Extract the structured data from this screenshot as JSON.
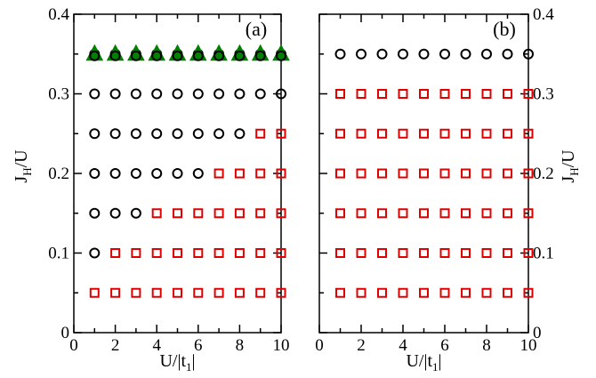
{
  "chart_data": [
    {
      "type": "scatter",
      "panel_label": "(a)",
      "xlabel": {
        "main": "U/|t",
        "sub": "1",
        "end": "|"
      },
      "ylabel": {
        "main": "J",
        "sub": "H",
        "end": "/U"
      },
      "y_axis_side": "left",
      "xlim": [
        0,
        10
      ],
      "ylim": [
        0,
        0.4
      ],
      "xticks": [
        "0",
        "2",
        "4",
        "6",
        "8",
        "10"
      ],
      "yticks": [
        "0",
        "0.1",
        "0.2",
        "0.3",
        "0.4"
      ],
      "grid": false,
      "series": [
        {
          "marker": "circle",
          "color": "#000000",
          "points": [
            [
              1,
              0.1
            ],
            [
              1,
              0.15
            ],
            [
              2,
              0.15
            ],
            [
              3,
              0.15
            ],
            [
              1,
              0.2
            ],
            [
              2,
              0.2
            ],
            [
              3,
              0.2
            ],
            [
              4,
              0.2
            ],
            [
              5,
              0.2
            ],
            [
              6,
              0.2
            ],
            [
              1,
              0.25
            ],
            [
              2,
              0.25
            ],
            [
              3,
              0.25
            ],
            [
              4,
              0.25
            ],
            [
              5,
              0.25
            ],
            [
              6,
              0.25
            ],
            [
              7,
              0.25
            ],
            [
              8,
              0.25
            ],
            [
              1,
              0.3
            ],
            [
              2,
              0.3
            ],
            [
              3,
              0.3
            ],
            [
              4,
              0.3
            ],
            [
              5,
              0.3
            ],
            [
              6,
              0.3
            ],
            [
              7,
              0.3
            ],
            [
              8,
              0.3
            ],
            [
              9,
              0.3
            ],
            [
              10,
              0.3
            ],
            [
              1,
              0.35
            ],
            [
              2,
              0.35
            ],
            [
              3,
              0.35
            ],
            [
              4,
              0.35
            ],
            [
              5,
              0.35
            ],
            [
              6,
              0.35
            ],
            [
              7,
              0.35
            ],
            [
              8,
              0.35
            ],
            [
              9,
              0.35
            ],
            [
              10,
              0.35
            ]
          ]
        },
        {
          "marker": "square",
          "color": "#e00000",
          "points": [
            [
              1,
              0.05
            ],
            [
              2,
              0.05
            ],
            [
              3,
              0.05
            ],
            [
              4,
              0.05
            ],
            [
              5,
              0.05
            ],
            [
              6,
              0.05
            ],
            [
              7,
              0.05
            ],
            [
              8,
              0.05
            ],
            [
              9,
              0.05
            ],
            [
              10,
              0.05
            ],
            [
              2,
              0.1
            ],
            [
              3,
              0.1
            ],
            [
              4,
              0.1
            ],
            [
              5,
              0.1
            ],
            [
              6,
              0.1
            ],
            [
              7,
              0.1
            ],
            [
              8,
              0.1
            ],
            [
              9,
              0.1
            ],
            [
              10,
              0.1
            ],
            [
              4,
              0.15
            ],
            [
              5,
              0.15
            ],
            [
              6,
              0.15
            ],
            [
              7,
              0.15
            ],
            [
              8,
              0.15
            ],
            [
              9,
              0.15
            ],
            [
              10,
              0.15
            ],
            [
              7,
              0.2
            ],
            [
              8,
              0.2
            ],
            [
              9,
              0.2
            ],
            [
              10,
              0.2
            ],
            [
              9,
              0.25
            ],
            [
              10,
              0.25
            ]
          ]
        },
        {
          "marker": "triangle",
          "color": "#008000",
          "points": [
            [
              1,
              0.35
            ],
            [
              2,
              0.35
            ],
            [
              3,
              0.35
            ],
            [
              4,
              0.35
            ],
            [
              5,
              0.35
            ],
            [
              6,
              0.35
            ],
            [
              7,
              0.35
            ],
            [
              8,
              0.35
            ],
            [
              9,
              0.35
            ],
            [
              10,
              0.35
            ]
          ]
        }
      ]
    },
    {
      "type": "scatter",
      "panel_label": "(b)",
      "xlabel": {
        "main": "U/|t",
        "sub": "1",
        "end": "|"
      },
      "ylabel": {
        "main": "J",
        "sub": "H",
        "end": "/U"
      },
      "y_axis_side": "right",
      "xlim": [
        0,
        10
      ],
      "ylim": [
        0,
        0.4
      ],
      "xticks": [
        "0",
        "2",
        "4",
        "6",
        "8",
        "10"
      ],
      "yticks": [
        "0",
        "0.1",
        "0.2",
        "0.3",
        "0.4"
      ],
      "grid": false,
      "series": [
        {
          "marker": "circle",
          "color": "#000000",
          "points": [
            [
              1,
              0.35
            ],
            [
              2,
              0.35
            ],
            [
              3,
              0.35
            ],
            [
              4,
              0.35
            ],
            [
              5,
              0.35
            ],
            [
              6,
              0.35
            ],
            [
              7,
              0.35
            ],
            [
              8,
              0.35
            ],
            [
              9,
              0.35
            ],
            [
              10,
              0.35
            ]
          ]
        },
        {
          "marker": "square",
          "color": "#e00000",
          "points": [
            [
              1,
              0.05
            ],
            [
              2,
              0.05
            ],
            [
              3,
              0.05
            ],
            [
              4,
              0.05
            ],
            [
              5,
              0.05
            ],
            [
              6,
              0.05
            ],
            [
              7,
              0.05
            ],
            [
              8,
              0.05
            ],
            [
              9,
              0.05
            ],
            [
              10,
              0.05
            ],
            [
              1,
              0.1
            ],
            [
              2,
              0.1
            ],
            [
              3,
              0.1
            ],
            [
              4,
              0.1
            ],
            [
              5,
              0.1
            ],
            [
              6,
              0.1
            ],
            [
              7,
              0.1
            ],
            [
              8,
              0.1
            ],
            [
              9,
              0.1
            ],
            [
              10,
              0.1
            ],
            [
              1,
              0.15
            ],
            [
              2,
              0.15
            ],
            [
              3,
              0.15
            ],
            [
              4,
              0.15
            ],
            [
              5,
              0.15
            ],
            [
              6,
              0.15
            ],
            [
              7,
              0.15
            ],
            [
              8,
              0.15
            ],
            [
              9,
              0.15
            ],
            [
              10,
              0.15
            ],
            [
              1,
              0.2
            ],
            [
              2,
              0.2
            ],
            [
              3,
              0.2
            ],
            [
              4,
              0.2
            ],
            [
              5,
              0.2
            ],
            [
              6,
              0.2
            ],
            [
              7,
              0.2
            ],
            [
              8,
              0.2
            ],
            [
              9,
              0.2
            ],
            [
              10,
              0.2
            ],
            [
              1,
              0.25
            ],
            [
              2,
              0.25
            ],
            [
              3,
              0.25
            ],
            [
              4,
              0.25
            ],
            [
              5,
              0.25
            ],
            [
              6,
              0.25
            ],
            [
              7,
              0.25
            ],
            [
              8,
              0.25
            ],
            [
              9,
              0.25
            ],
            [
              10,
              0.25
            ],
            [
              1,
              0.3
            ],
            [
              2,
              0.3
            ],
            [
              3,
              0.3
            ],
            [
              4,
              0.3
            ],
            [
              5,
              0.3
            ],
            [
              6,
              0.3
            ],
            [
              7,
              0.3
            ],
            [
              8,
              0.3
            ],
            [
              9,
              0.3
            ],
            [
              10,
              0.3
            ]
          ]
        }
      ]
    }
  ]
}
